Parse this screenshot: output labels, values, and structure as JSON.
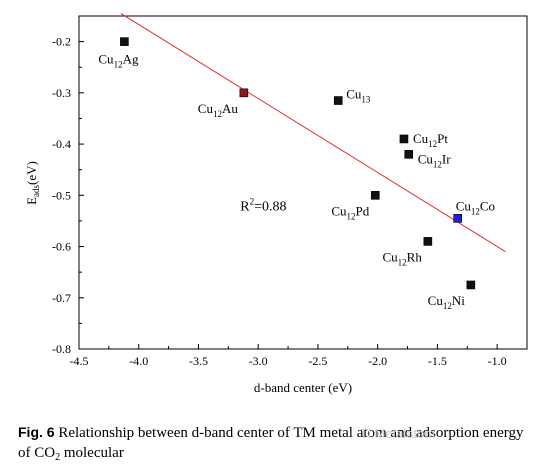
{
  "chart_data": {
    "type": "scatter",
    "xlabel": "d-band center (eV)",
    "ylabel_main": "E",
    "ylabel_sub": "ads",
    "ylabel_unit": "(eV)",
    "xlim": [
      -4.5,
      -0.75
    ],
    "ylim": [
      -0.8,
      -0.15
    ],
    "xticks": [
      -4.5,
      -4.0,
      -3.5,
      -3.0,
      -2.5,
      -2.0,
      -1.5,
      -1.0
    ],
    "xtick_labels": [
      "-4.5",
      "-4.0",
      "-3.5",
      "-3.0",
      "-2.5",
      "-2.0",
      "-1.5",
      "-1.0"
    ],
    "yticks": [
      -0.2,
      -0.3,
      -0.4,
      -0.5,
      -0.6,
      -0.7,
      -0.8
    ],
    "ytick_labels": [
      "-0.2",
      "-0.3",
      "-0.4",
      "-0.5",
      "-0.6",
      "-0.7",
      "-0.8"
    ],
    "points": [
      {
        "base": "Cu",
        "sub": "12",
        "suffix": "Ag",
        "x": -4.12,
        "y": -0.2,
        "color": "#111111",
        "label_pos": "below-right"
      },
      {
        "base": "Cu",
        "sub": "12",
        "suffix": "Au",
        "x": -3.12,
        "y": -0.3,
        "color": "#8b1a1a",
        "label_pos": "below-left"
      },
      {
        "base": "Cu",
        "sub": "13",
        "suffix": "",
        "x": -2.33,
        "y": -0.315,
        "color": "#111111",
        "label_pos": "above-right"
      },
      {
        "base": "Cu",
        "sub": "12",
        "suffix": "Pt",
        "x": -1.78,
        "y": -0.39,
        "color": "#111111",
        "label_pos": "right"
      },
      {
        "base": "Cu",
        "sub": "12",
        "suffix": "Ir",
        "x": -1.74,
        "y": -0.42,
        "color": "#111111",
        "label_pos": "right-low"
      },
      {
        "base": "Cu",
        "sub": "12",
        "suffix": "Pd",
        "x": -2.02,
        "y": -0.5,
        "color": "#111111",
        "label_pos": "below-left"
      },
      {
        "base": "Cu",
        "sub": "12",
        "suffix": "Co",
        "x": -1.33,
        "y": -0.545,
        "color": "#2222cc",
        "label_pos": "above"
      },
      {
        "base": "Cu",
        "sub": "12",
        "suffix": "Rh",
        "x": -1.58,
        "y": -0.59,
        "color": "#111111",
        "label_pos": "below-left"
      },
      {
        "base": "Cu",
        "sub": "12",
        "suffix": "Ni",
        "x": -1.22,
        "y": -0.675,
        "color": "#111111",
        "label_pos": "below-left"
      }
    ],
    "fit_line": {
      "x": [
        -4.15,
        -0.93
      ],
      "y": [
        -0.145,
        -0.61
      ],
      "color": "#e03030"
    },
    "annotation": {
      "main": "R",
      "sup": "2",
      "rest": "=0.88",
      "x": -3.15,
      "y": -0.53
    }
  },
  "caption": {
    "lead": "Fig. 6",
    "text_before": " Relationship between d-band center of TM metal atom and adsorption energy of CO",
    "sub": "2",
    "text_after": " molecular"
  },
  "watermark": "Tl Metalatom"
}
